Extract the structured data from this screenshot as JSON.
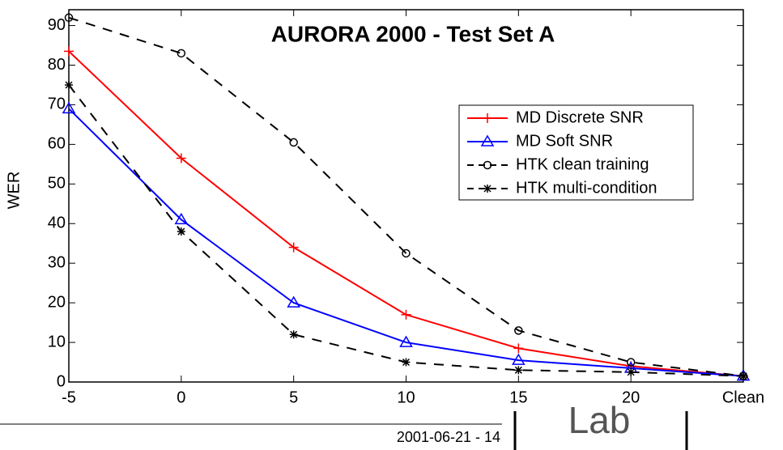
{
  "chart_data": {
    "type": "line",
    "title": "AURORA 2000 - Test Set A",
    "y_label": "WER",
    "categories": [
      "-5",
      "0",
      "5",
      "10",
      "15",
      "20",
      "Clean"
    ],
    "series": [
      {
        "name": "MD Discrete SNR",
        "color": "#ff0000",
        "marker": "plus",
        "dashed": false,
        "values": [
          83.5,
          56.5,
          34,
          17,
          8.5,
          4,
          1.5
        ]
      },
      {
        "name": "MD Soft SNR",
        "color": "#0000ff",
        "marker": "triangle",
        "dashed": false,
        "values": [
          69,
          41,
          20,
          10,
          5.5,
          3.5,
          1.5
        ]
      },
      {
        "name": "HTK clean training",
        "color": "#000000",
        "marker": "circle",
        "dashed": true,
        "values": [
          92,
          83,
          60.5,
          32.5,
          13,
          5,
          1.5
        ]
      },
      {
        "name": "HTK multi-condition",
        "color": "#000000",
        "marker": "asterisk",
        "dashed": true,
        "values": [
          75,
          38,
          12,
          5,
          3,
          2.5,
          1.5
        ]
      }
    ],
    "ylim": [
      0,
      94
    ],
    "yticks": [
      0,
      10,
      20,
      30,
      40,
      50,
      60,
      70,
      80,
      90
    ],
    "legend": "upper right"
  },
  "footer": {
    "date": "2001-06-21 - 14",
    "logo": "Lab"
  }
}
